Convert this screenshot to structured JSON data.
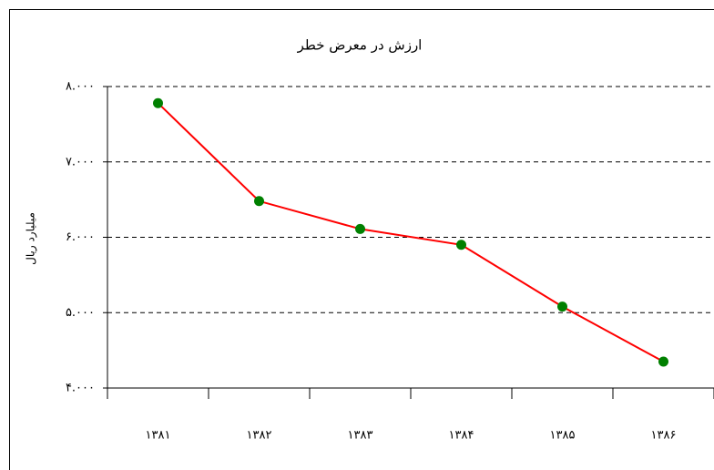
{
  "chart_data": {
    "type": "line",
    "title": "ارزش در معرض خطر",
    "y_label": "میلیارد ریال",
    "categories": [
      "۱۳۸۱",
      "۱۳۸۲",
      "۱۳۸۳",
      "۱۳۸۴",
      "۱۳۸۵",
      "۱۳۸۶"
    ],
    "series": [
      {
        "name": "ارزش در معرض خطر",
        "color": "#ff0000",
        "marker_color": "#008000",
        "values": [
          7780,
          6480,
          6110,
          5900,
          5080,
          4350
        ]
      }
    ],
    "ylim": [
      4000,
      8000
    ],
    "yticks": [
      {
        "value": 4000,
        "label": "۴.۰۰۰"
      },
      {
        "value": 5000,
        "label": "۵.۰۰۰"
      },
      {
        "value": 6000,
        "label": "۶.۰۰۰"
      },
      {
        "value": 7000,
        "label": "۷.۰۰۰"
      },
      {
        "value": 8000,
        "label": "۸.۰۰۰"
      }
    ],
    "grid": true
  }
}
